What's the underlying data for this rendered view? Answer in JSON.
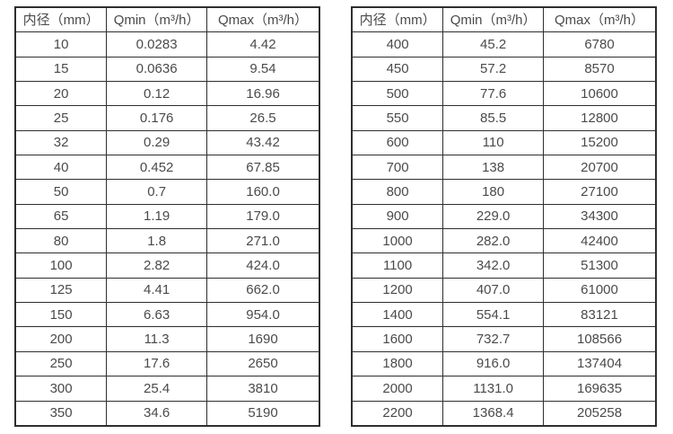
{
  "page": {
    "background": "#ffffff",
    "border_color": "#2e2e2e",
    "text_color": "#4a4a4a"
  },
  "tables": [
    {
      "name": "flow-table-small-diameter",
      "headers": [
        "内径（mm）",
        "Qmin（m³/h）",
        "Qmax（m³/h）"
      ],
      "rows": [
        [
          "10",
          "0.0283",
          "4.42"
        ],
        [
          "15",
          "0.0636",
          "9.54"
        ],
        [
          "20",
          "0.12",
          "16.96"
        ],
        [
          "25",
          "0.176",
          "26.5"
        ],
        [
          "32",
          "0.29",
          "43.42"
        ],
        [
          "40",
          "0.452",
          "67.85"
        ],
        [
          "50",
          "0.7",
          "160.0"
        ],
        [
          "65",
          "1.19",
          "179.0"
        ],
        [
          "80",
          "1.8",
          "271.0"
        ],
        [
          "100",
          "2.82",
          "424.0"
        ],
        [
          "125",
          "4.41",
          "662.0"
        ],
        [
          "150",
          "6.63",
          "954.0"
        ],
        [
          "200",
          "11.3",
          "1690"
        ],
        [
          "250",
          "17.6",
          "2650"
        ],
        [
          "300",
          "25.4",
          "3810"
        ],
        [
          "350",
          "34.6",
          "5190"
        ]
      ]
    },
    {
      "name": "flow-table-large-diameter",
      "headers": [
        "内径（mm）",
        "Qmin（m³/h）",
        "Qmax（m³/h）"
      ],
      "rows": [
        [
          "400",
          "45.2",
          "6780"
        ],
        [
          "450",
          "57.2",
          "8570"
        ],
        [
          "500",
          "77.6",
          "10600"
        ],
        [
          "550",
          "85.5",
          "12800"
        ],
        [
          "600",
          "110",
          "15200"
        ],
        [
          "700",
          "138",
          "20700"
        ],
        [
          "800",
          "180",
          "27100"
        ],
        [
          "900",
          "229.0",
          "34300"
        ],
        [
          "1000",
          "282.0",
          "42400"
        ],
        [
          "1100",
          "342.0",
          "51300"
        ],
        [
          "1200",
          "407.0",
          "61000"
        ],
        [
          "1400",
          "554.1",
          "83121"
        ],
        [
          "1600",
          "732.7",
          "108566"
        ],
        [
          "1800",
          "916.0",
          "137404"
        ],
        [
          "2000",
          "1131.0",
          "169635"
        ],
        [
          "2200",
          "1368.4",
          "205258"
        ]
      ]
    }
  ]
}
